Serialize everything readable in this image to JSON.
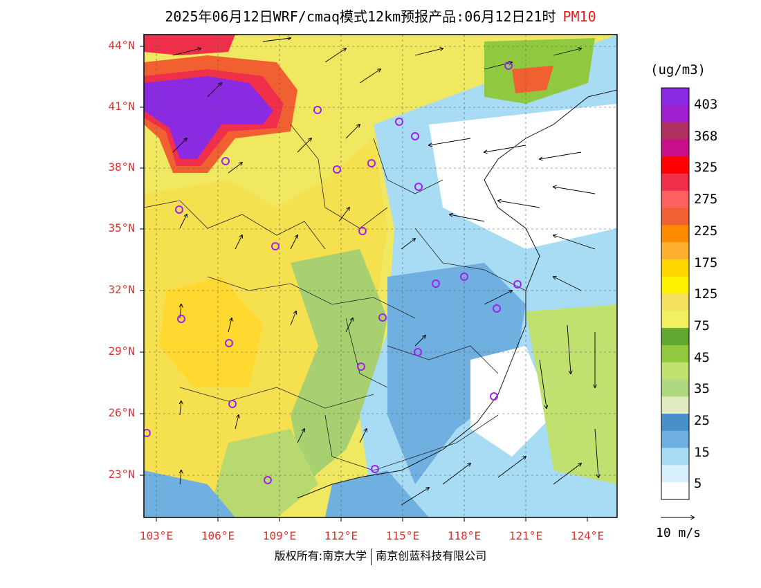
{
  "title": {
    "main": "2025年06月12日WRF/cmaq模式12km预报产品:06月12日21时",
    "pollutant": "PM10",
    "pollutant_color": "#e02020"
  },
  "map": {
    "lat_labels": [
      "44°N",
      "41°N",
      "38°N",
      "35°N",
      "32°N",
      "29°N",
      "26°N",
      "23°N"
    ],
    "lon_labels": [
      "103°E",
      "106°E",
      "109°E",
      "112°E",
      "115°E",
      "118°E",
      "121°E",
      "124°E"
    ],
    "label_color": "#e03030"
  },
  "colorbar": {
    "unit": "(ug/m3)",
    "labels": [
      "403",
      "368",
      "325",
      "275",
      "225",
      "175",
      "125",
      "75",
      "45",
      "35",
      "25",
      "15",
      "5"
    ],
    "colors": [
      "#8a2be2",
      "#a020d0",
      "#b03060",
      "#c8108a",
      "#ff0000",
      "#f0304a",
      "#ff6060",
      "#f06030",
      "#ff8c00",
      "#ffb030",
      "#ffd800",
      "#fff000",
      "#f5e060",
      "#f0f060",
      "#60a830",
      "#90c840",
      "#c0e070",
      "#b0d880",
      "#e0ecc0",
      "#4a90c8",
      "#70b0e0",
      "#a8dcf4",
      "#d8f0fc",
      "#ffffff"
    ]
  },
  "wind_reference": {
    "label": "10 m/s"
  },
  "copyright": {
    "left": "版权所有:南京大学",
    "right": "南京创蓝科技有限公司"
  },
  "markers": {
    "city_marker_color": "#a020f0"
  }
}
